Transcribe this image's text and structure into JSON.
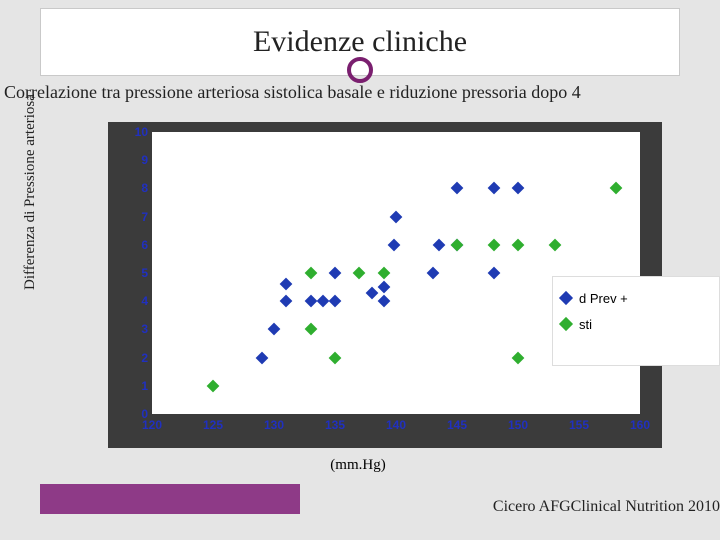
{
  "title": "Evidenze cliniche",
  "subtitle": "Correlazione tra pressione arteriosa sistolica basale e riduzione pressoria dopo 4",
  "ylabel": "Differenza di Pressione arteriosa",
  "xlabel": "(mm.Hg)",
  "citation": "Cicero AFGClinical Nutrition 2010",
  "chart": {
    "type": "scatter",
    "background_color": "#3b3b3b",
    "plot_background": "#ffffff",
    "tick_color": "#2030c0",
    "tick_fontsize": 12,
    "xlim": [
      120,
      160
    ],
    "ylim": [
      0,
      10
    ],
    "xticks": [
      120,
      125,
      130,
      135,
      140,
      145,
      150,
      155,
      160
    ],
    "yticks": [
      0,
      1,
      2,
      3,
      4,
      5,
      6,
      7,
      8,
      9,
      10
    ],
    "marker_size": 9,
    "series": {
      "prev": {
        "label": "d Prev +",
        "color": "#1f3bb3",
        "points": [
          [
            129,
            2
          ],
          [
            130,
            3
          ],
          [
            131,
            4
          ],
          [
            131,
            4.6
          ],
          [
            133,
            4
          ],
          [
            134,
            4
          ],
          [
            135,
            4
          ],
          [
            135,
            5
          ],
          [
            138,
            4.3
          ],
          [
            139,
            4
          ],
          [
            139,
            4.5
          ],
          [
            139.8,
            6
          ],
          [
            140,
            7
          ],
          [
            143,
            5
          ],
          [
            143.5,
            6
          ],
          [
            145,
            6
          ],
          [
            145,
            8
          ],
          [
            148,
            5
          ],
          [
            148,
            8
          ],
          [
            150,
            8
          ]
        ]
      },
      "sogetti": {
        "label": "sti",
        "color": "#2fae2f",
        "points": [
          [
            125,
            1
          ],
          [
            133,
            3
          ],
          [
            133,
            5
          ],
          [
            135,
            2
          ],
          [
            137,
            5
          ],
          [
            139,
            5
          ],
          [
            145,
            6
          ],
          [
            148,
            6
          ],
          [
            150,
            2
          ],
          [
            150,
            6
          ],
          [
            153,
            6
          ],
          [
            158,
            8
          ]
        ]
      }
    }
  },
  "legend": {
    "items": [
      {
        "series": "prev",
        "visible_label": "d Prev +"
      },
      {
        "series": "sogetti",
        "visible_label": "sti"
      }
    ]
  },
  "colors": {
    "slide_bg": "#e5e5e5",
    "accent": "#8e3a87",
    "title_circle": "#7a1f6f"
  }
}
